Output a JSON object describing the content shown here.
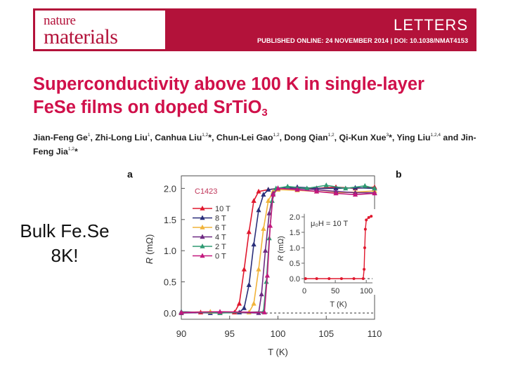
{
  "header": {
    "journal_top": "nature",
    "journal_bottom": "materials",
    "section": "LETTERS",
    "published": "PUBLISHED ONLINE: 24 NOVEMBER 2014 | DOI: 10.1038/NMAT4153"
  },
  "paper": {
    "title_line1": "Superconductivity above 100 K in single-layer",
    "title_line2_main": "FeSe films on doped SrTiO",
    "title_line2_sub": "3",
    "authors": [
      {
        "name": "Jian-Feng Ge",
        "aff": "1",
        "sep": ", "
      },
      {
        "name": "Zhi-Long Liu",
        "aff": "1",
        "sep": ", "
      },
      {
        "name": "Canhua Liu",
        "aff": "1,2",
        "star": "*",
        "sep": ", "
      },
      {
        "name": "Chun-Lei Gao",
        "aff": "1,2",
        "sep": ", "
      },
      {
        "name": "Dong Qian",
        "aff": "1,2",
        "sep": ", "
      },
      {
        "name": "Qi-Kun Xue",
        "aff": "3",
        "star": "*",
        "sep": ", "
      },
      {
        "name": "Ying Liu",
        "aff": "1,2,4",
        "sep": " "
      },
      {
        "name": "and Jin-Feng Jia",
        "aff": "1,2",
        "star": "*",
        "sep": ""
      }
    ]
  },
  "annotation": {
    "line1": "Bulk Fe.Se",
    "line2": "8K!"
  },
  "figure": {
    "panel_a": "a",
    "panel_b": "b"
  },
  "chart_data": [
    {
      "type": "line",
      "panel": "a",
      "sample": "C1423",
      "xlabel": "T (K)",
      "ylabel_symbol": "R",
      "ylabel_unit": "(mΩ)",
      "xlim": [
        90,
        110
      ],
      "ylim": [
        -0.1,
        2.2
      ],
      "xticks": [
        "90",
        "95",
        "100",
        "105",
        "110"
      ],
      "xtick_values": [
        90,
        95,
        100,
        105,
        110
      ],
      "yticks": [
        "0.0",
        "0.5",
        "1.0",
        "1.5",
        "2.0"
      ],
      "ytick_values": [
        0,
        0.5,
        1,
        1.5,
        2
      ],
      "series": [
        {
          "name": "10 T",
          "color": "#e0182e",
          "points": [
            [
              90,
              0.0
            ],
            [
              92,
              0.01
            ],
            [
              94,
              0.0
            ],
            [
              95.5,
              0.01
            ],
            [
              96,
              0.15
            ],
            [
              96.5,
              0.7
            ],
            [
              97,
              1.3
            ],
            [
              97.5,
              1.8
            ],
            [
              98,
              1.95
            ],
            [
              99,
              1.98
            ],
            [
              100,
              2.0
            ],
            [
              102,
              2.0
            ],
            [
              104,
              2.0
            ],
            [
              106,
              2.02
            ],
            [
              108,
              2.0
            ],
            [
              110,
              2.02
            ]
          ]
        },
        {
          "name": "8 T",
          "color": "#2a2f7a",
          "points": [
            [
              90,
              0.02
            ],
            [
              93,
              0.0
            ],
            [
              96,
              0.01
            ],
            [
              96.5,
              0.08
            ],
            [
              97,
              0.45
            ],
            [
              97.5,
              1.1
            ],
            [
              98,
              1.65
            ],
            [
              98.5,
              1.9
            ],
            [
              99,
              1.98
            ],
            [
              100,
              2.0
            ],
            [
              102,
              2.02
            ],
            [
              104,
              2.0
            ],
            [
              106,
              2.0
            ],
            [
              108,
              2.01
            ],
            [
              110,
              2.0
            ]
          ]
        },
        {
          "name": "6 T",
          "color": "#f1b33a",
          "points": [
            [
              90,
              0.01
            ],
            [
              93,
              0.02
            ],
            [
              97,
              0.01
            ],
            [
              97.5,
              0.15
            ],
            [
              98,
              0.7
            ],
            [
              98.5,
              1.35
            ],
            [
              99,
              1.8
            ],
            [
              99.5,
              1.95
            ],
            [
              100,
              1.98
            ],
            [
              102,
              1.97
            ],
            [
              104,
              1.95
            ],
            [
              106,
              1.93
            ],
            [
              108,
              1.94
            ],
            [
              110,
              1.96
            ]
          ]
        },
        {
          "name": "4 T",
          "color": "#6e2a82",
          "points": [
            [
              90,
              0.0
            ],
            [
              94,
              0.01
            ],
            [
              98,
              0.0
            ],
            [
              98.3,
              0.3
            ],
            [
              98.7,
              1.0
            ],
            [
              99.1,
              1.6
            ],
            [
              99.5,
              1.92
            ],
            [
              100,
              2.0
            ],
            [
              102,
              2.0
            ],
            [
              104,
              1.98
            ],
            [
              106,
              1.95
            ],
            [
              108,
              1.93
            ],
            [
              110,
              1.93
            ]
          ]
        },
        {
          "name": "2 T",
          "color": "#2e9a72",
          "points": [
            [
              90,
              0.02
            ],
            [
              94,
              0.0
            ],
            [
              98.5,
              0.02
            ],
            [
              98.8,
              0.5
            ],
            [
              99.1,
              1.2
            ],
            [
              99.4,
              1.8
            ],
            [
              99.8,
              2.0
            ],
            [
              101,
              2.03
            ],
            [
              103,
              2.0
            ],
            [
              105,
              2.05
            ],
            [
              107,
              2.0
            ],
            [
              109,
              2.04
            ],
            [
              110,
              2.0
            ]
          ]
        },
        {
          "name": "0 T",
          "color": "#c2187e",
          "points": [
            [
              90,
              0.01
            ],
            [
              94,
              0.02
            ],
            [
              98.6,
              0.01
            ],
            [
              98.9,
              0.6
            ],
            [
              99.2,
              1.4
            ],
            [
              99.5,
              1.9
            ],
            [
              100,
              2.0
            ],
            [
              102,
              1.98
            ],
            [
              104,
              1.95
            ],
            [
              106,
              1.92
            ],
            [
              108,
              1.9
            ],
            [
              110,
              1.92
            ]
          ]
        }
      ]
    },
    {
      "type": "line",
      "panel": "a-inset",
      "field_label": "μ₀H = 10 T",
      "xlabel": "T (K)",
      "ylabel_symbol": "R",
      "ylabel_unit": "(mΩ)",
      "xlim": [
        0,
        110
      ],
      "ylim": [
        -0.1,
        2.2
      ],
      "xticks": [
        "0",
        "50",
        "100"
      ],
      "xtick_values": [
        0,
        50,
        100
      ],
      "yticks": [
        "0.0",
        "0.5",
        "1.0",
        "1.5",
        "2.0"
      ],
      "ytick_values": [
        0,
        0.5,
        1,
        1.5,
        2
      ],
      "series": [
        {
          "name": "10 T",
          "color": "#e0182e",
          "points": [
            [
              2,
              0.0
            ],
            [
              20,
              0.0
            ],
            [
              40,
              0.0
            ],
            [
              60,
              0.0
            ],
            [
              80,
              0.0
            ],
            [
              95,
              0.0
            ],
            [
              96.5,
              0.3
            ],
            [
              97.5,
              1.0
            ],
            [
              98.5,
              1.6
            ],
            [
              100,
              1.9
            ],
            [
              104,
              1.98
            ],
            [
              108,
              2.02
            ]
          ]
        }
      ]
    }
  ]
}
